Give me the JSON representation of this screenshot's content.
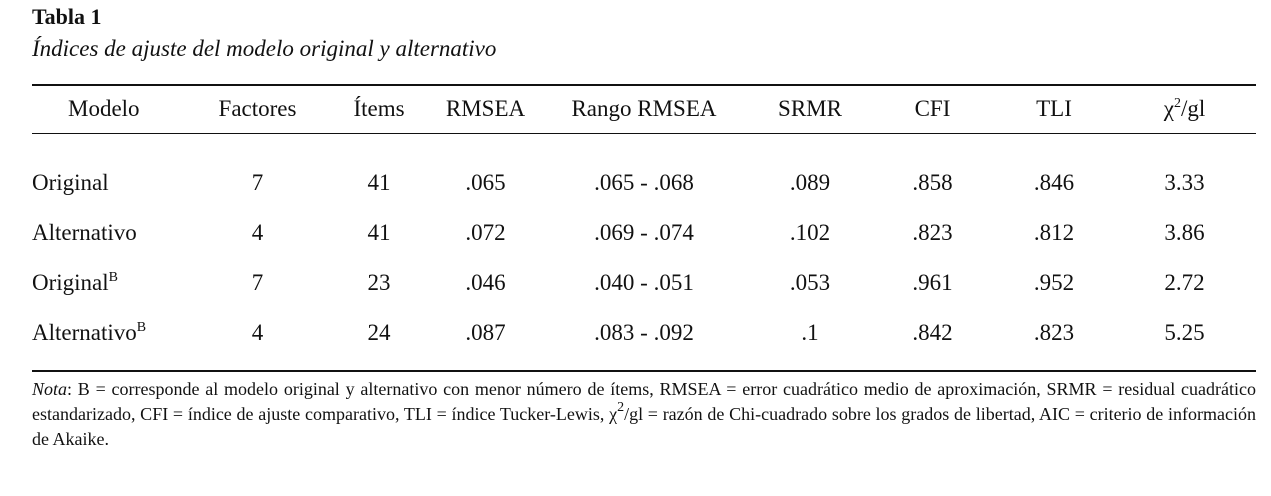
{
  "table": {
    "label": "Tabla 1",
    "title": "Índices de ajuste del modelo original y alternativo",
    "headers": {
      "modelo": "Modelo",
      "factores": "Factores",
      "items": "Ítems",
      "rmsea": "RMSEA",
      "rango_rmsea": "Rango RMSEA",
      "srmr": "SRMR",
      "cfi": "CFI",
      "tli": "TLI",
      "chi_base": "χ",
      "chi_sup": "2",
      "chi_suffix": "/gl"
    },
    "rows": [
      {
        "modelo": "Original",
        "sup": "",
        "factores": "7",
        "items": "41",
        "rmsea": ".065",
        "rango_rmsea": ".065 - .068",
        "srmr": ".089",
        "cfi": ".858",
        "tli": ".846",
        "chi_gl": "3.33"
      },
      {
        "modelo": "Alternativo",
        "sup": "",
        "factores": "4",
        "items": "41",
        "rmsea": ".072",
        "rango_rmsea": ".069 - .074",
        "srmr": ".102",
        "cfi": ".823",
        "tli": ".812",
        "chi_gl": "3.86"
      },
      {
        "modelo": "Original",
        "sup": "B",
        "factores": "7",
        "items": "23",
        "rmsea": ".046",
        "rango_rmsea": ".040 - .051",
        "srmr": ".053",
        "cfi": ".961",
        "tli": ".952",
        "chi_gl": "2.72"
      },
      {
        "modelo": "Alternativo",
        "sup": "B",
        "factores": "4",
        "items": "24",
        "rmsea": ".087",
        "rango_rmsea": ".083 - .092",
        "srmr": ".1",
        "cfi": ".842",
        "tli": ".823",
        "chi_gl": "5.25"
      }
    ],
    "note": {
      "label": "Nota",
      "part1": ": B = corresponde al modelo original y alternativo con menor número de ítems, RMSEA = error cuadrático medio de aproximación, SRMR = residual cuadrático estandarizado, CFI = índice de ajuste comparativo, TLI = índice Tucker-Lewis, ",
      "chi_base": "χ",
      "chi_sup": "2",
      "part2": "/gl = razón de Chi-cuadrado sobre los grados de libertad, AIC = criterio de información de Akaike."
    }
  }
}
